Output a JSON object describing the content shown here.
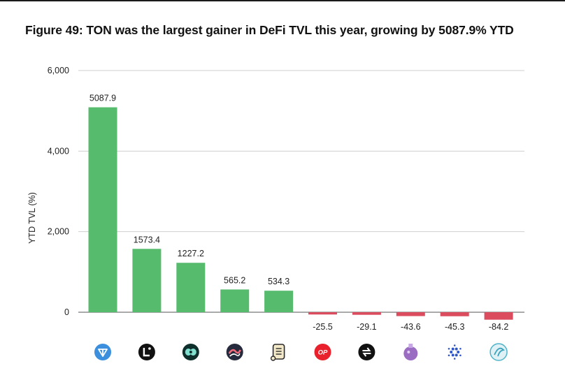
{
  "title": "Figure 49: TON was the largest gainer in DeFi TVL this year, growing by 5087.9% YTD",
  "chart_data": {
    "type": "bar",
    "title": "Figure 49: TON was the largest gainer in DeFi TVL this year, growing by 5087.9% YTD",
    "xlabel": "",
    "ylabel": "YTD TVL (%)",
    "ylim": [
      -200,
      6000
    ],
    "yticks": [
      0,
      2000,
      4000,
      6000
    ],
    "ytick_labels": [
      "0",
      "2,000",
      "4,000",
      "6,000"
    ],
    "grid": true,
    "categories": [
      "ton-icon",
      "linea-icon",
      "mantle-icon",
      "sei-icon",
      "scroll-icon",
      "optimism-icon",
      "icon-7",
      "icon-8",
      "cardano-icon",
      "icon-10"
    ],
    "values": [
      5087.9,
      1573.4,
      1227.2,
      565.2,
      534.3,
      -25.5,
      -29.1,
      -43.6,
      -45.3,
      -84.2
    ],
    "value_labels": [
      "5087.9",
      "1573.4",
      "1227.2",
      "565.2",
      "534.3",
      "-25.5",
      "-29.1",
      "-43.6",
      "-45.3",
      "-84.2"
    ],
    "positive_color": "#57bb6e",
    "negative_color": "#db4c5e",
    "gridline_color": "#cfcfcf",
    "axis_color": "#555555",
    "icon_text": {
      "optimism": "OP"
    },
    "icon_colors": [
      "#3b8fdc",
      "#111111",
      "#0f2f2c",
      "#262a3d",
      "#f3e8c8",
      "#e8212c",
      "#111111",
      "#9a6cc2",
      "#2f56c8",
      "#dff1f5"
    ]
  }
}
